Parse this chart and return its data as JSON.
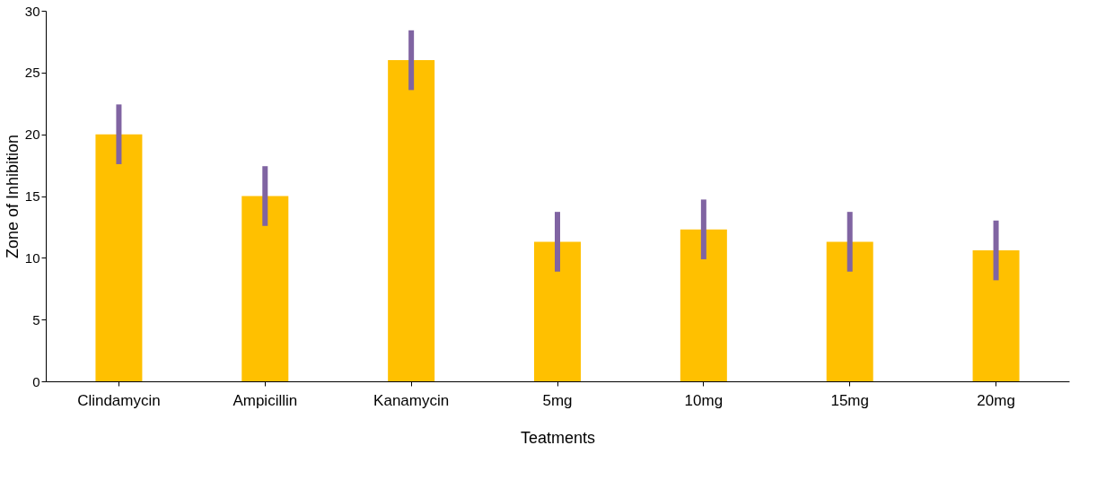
{
  "chart_data": {
    "type": "bar",
    "xlabel": "Teatments",
    "ylabel": "Zone of Inhibition",
    "categories": [
      "Clindamycin",
      "Ampicillin",
      "Kanamycin",
      "5mg",
      "10mg",
      "15mg",
      "20mg"
    ],
    "series": [
      {
        "color": "#ffc000",
        "values": [
          20,
          15,
          26,
          11.3,
          12.3,
          11.3,
          10.6
        ],
        "errors": [
          2.2,
          2.2,
          2.2,
          2.2,
          2.2,
          2.2,
          2.2
        ]
      }
    ],
    "ylim": [
      0,
      30
    ],
    "yticks": [
      0,
      5,
      10,
      15,
      20,
      25,
      30
    ],
    "grid": false
  }
}
